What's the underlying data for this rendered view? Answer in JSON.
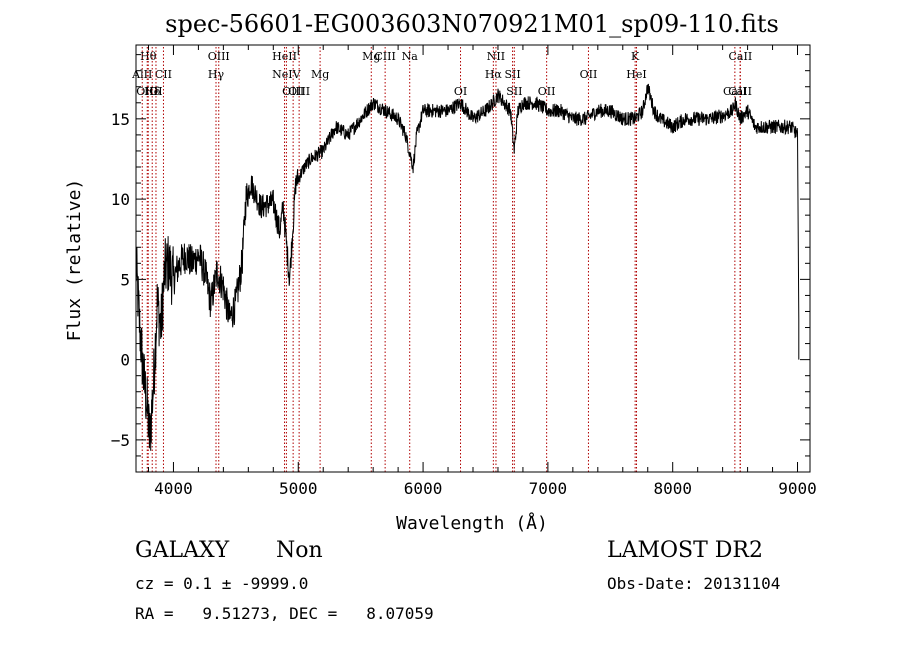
{
  "chart_data": {
    "type": "line",
    "title": "spec-56601-EG003603N070921M01_sp09-110.fits",
    "xlabel": "Wavelength (Å)",
    "ylabel": "Flux (relative)",
    "xlim": [
      3700,
      9100
    ],
    "ylim": [
      -7,
      19.6
    ],
    "xticks": [
      4000,
      5000,
      6000,
      7000,
      8000,
      9000
    ],
    "yticks": [
      -5,
      0,
      5,
      10,
      15
    ],
    "grid": false,
    "line_color": "#000000",
    "marker_color": "#b00000",
    "spectrum_anchors": [
      [
        3700,
        6.0
      ],
      [
        3730,
        2.0
      ],
      [
        3760,
        -1.0
      ],
      [
        3790,
        -3.0
      ],
      [
        3810,
        -5.0
      ],
      [
        3840,
        -1.5
      ],
      [
        3870,
        3.5
      ],
      [
        3900,
        2.0
      ],
      [
        3930,
        5.5
      ],
      [
        3960,
        6.0
      ],
      [
        4000,
        5.0
      ],
      [
        4050,
        6.0
      ],
      [
        4100,
        6.5
      ],
      [
        4150,
        6.0
      ],
      [
        4200,
        6.5
      ],
      [
        4250,
        5.5
      ],
      [
        4300,
        3.5
      ],
      [
        4350,
        5.5
      ],
      [
        4400,
        4.5
      ],
      [
        4450,
        2.5
      ],
      [
        4500,
        3.5
      ],
      [
        4550,
        6.0
      ],
      [
        4580,
        10.0
      ],
      [
        4620,
        11.0
      ],
      [
        4700,
        9.5
      ],
      [
        4800,
        9.8
      ],
      [
        4850,
        8.0
      ],
      [
        4880,
        9.5
      ],
      [
        4930,
        5.0
      ],
      [
        4980,
        11.0
      ],
      [
        5050,
        12.0
      ],
      [
        5100,
        12.5
      ],
      [
        5200,
        13.0
      ],
      [
        5300,
        14.5
      ],
      [
        5400,
        14.0
      ],
      [
        5500,
        15.0
      ],
      [
        5600,
        16.0
      ],
      [
        5700,
        15.5
      ],
      [
        5800,
        15.0
      ],
      [
        5860,
        14.0
      ],
      [
        5890,
        13.0
      ],
      [
        5920,
        12.0
      ],
      [
        5950,
        14.0
      ],
      [
        6000,
        15.5
      ],
      [
        6100,
        15.5
      ],
      [
        6200,
        15.5
      ],
      [
        6300,
        16.0
      ],
      [
        6400,
        15.0
      ],
      [
        6500,
        15.5
      ],
      [
        6560,
        16.0
      ],
      [
        6600,
        16.5
      ],
      [
        6700,
        15.5
      ],
      [
        6730,
        13.0
      ],
      [
        6760,
        15.5
      ],
      [
        6800,
        16.0
      ],
      [
        6900,
        16.0
      ],
      [
        7000,
        15.5
      ],
      [
        7100,
        15.5
      ],
      [
        7200,
        15.0
      ],
      [
        7300,
        15.0
      ],
      [
        7400,
        15.5
      ],
      [
        7500,
        15.5
      ],
      [
        7600,
        15.0
      ],
      [
        7700,
        15.0
      ],
      [
        7760,
        15.5
      ],
      [
        7800,
        17.0
      ],
      [
        7850,
        15.5
      ],
      [
        7900,
        15.0
      ],
      [
        8000,
        14.5
      ],
      [
        8100,
        15.0
      ],
      [
        8200,
        15.0
      ],
      [
        8300,
        15.0
      ],
      [
        8400,
        15.2
      ],
      [
        8480,
        15.5
      ],
      [
        8500,
        16.0
      ],
      [
        8540,
        15.0
      ],
      [
        8600,
        15.5
      ],
      [
        8660,
        14.5
      ],
      [
        8700,
        14.5
      ],
      [
        8800,
        14.5
      ],
      [
        8900,
        14.5
      ],
      [
        8950,
        14.5
      ],
      [
        9000,
        14.0
      ],
      [
        9010,
        2.5
      ],
      [
        9010,
        0.0
      ]
    ],
    "line_markers": [
      {
        "label": "Hθ",
        "wl": 3798,
        "row": 0
      },
      {
        "label": "AlII",
        "wl": 3750,
        "row": 1
      },
      {
        "label": "CII",
        "wl": 3920,
        "row": 1
      },
      {
        "label": "OIII",
        "wl": 3790,
        "row": 2
      },
      {
        "label": "Hδ",
        "wl": 3830,
        "row": 2
      },
      {
        "label": "OI",
        "wl": 3860,
        "row": 2
      },
      {
        "label": "OIII",
        "wl": 4363,
        "row": 0
      },
      {
        "label": "Hγ",
        "wl": 4341,
        "row": 1
      },
      {
        "label": "HeII",
        "wl": 4890,
        "row": 0
      },
      {
        "label": "NeIV",
        "wl": 4905,
        "row": 1
      },
      {
        "label": "Mg",
        "wl": 5175,
        "row": 1
      },
      {
        "label": "OIII",
        "wl": 4959,
        "row": 2
      },
      {
        "label": "OIII",
        "wl": 5007,
        "row": 2
      },
      {
        "label": "Mg",
        "wl": 5585,
        "row": 0
      },
      {
        "label": "CIII",
        "wl": 5696,
        "row": 0
      },
      {
        "label": "Na",
        "wl": 5893,
        "row": 0
      },
      {
        "label": "OI",
        "wl": 6300,
        "row": 2
      },
      {
        "label": "NII",
        "wl": 6584,
        "row": 0
      },
      {
        "label": "Hα",
        "wl": 6563,
        "row": 1
      },
      {
        "label": "SII",
        "wl": 6717,
        "row": 1
      },
      {
        "label": "SII",
        "wl": 6731,
        "row": 2
      },
      {
        "label": "OII",
        "wl": 7325,
        "row": 1
      },
      {
        "label": "OII",
        "wl": 6990,
        "row": 2
      },
      {
        "label": "K",
        "wl": 7699,
        "row": 0
      },
      {
        "label": "HeI",
        "wl": 7710,
        "row": 1
      },
      {
        "label": "CaII",
        "wl": 8542,
        "row": 0
      },
      {
        "label": "CaII",
        "wl": 8498,
        "row": 2
      },
      {
        "label": "CaII",
        "wl": 8540,
        "row": 2
      }
    ]
  },
  "info": {
    "class_label": "GALAXY",
    "subclass_label": "Non",
    "survey": "LAMOST DR2",
    "cz_line": "cz = 0.1 ± -9999.0",
    "obs_date_line": "Obs-Date: 20131104",
    "coords_line": "RA =   9.51273, DEC =   8.07059"
  }
}
